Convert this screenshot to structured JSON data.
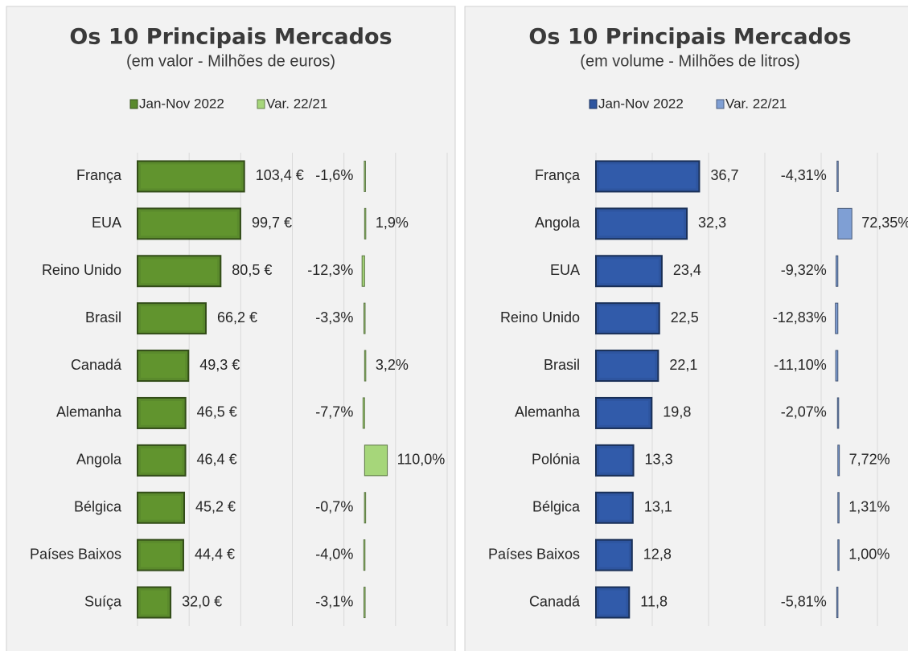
{
  "chart_data": [
    {
      "type": "bar",
      "orientation": "horizontal",
      "title": "Os 10 Principais Mercados",
      "subtitle": "(em valor - Milhões de euros)",
      "categories": [
        "França",
        "EUA",
        "Reino Unido",
        "Brasil",
        "Canadá",
        "Alemanha",
        "Angola",
        "Bélgica",
        "Países Baixos",
        "Suíça"
      ],
      "series": [
        {
          "name": "Jan-Nov 2022",
          "color": "#5a8a2c",
          "values": [
            103.4,
            99.7,
            80.5,
            66.2,
            49.3,
            46.5,
            46.4,
            45.2,
            44.4,
            32.0
          ],
          "value_labels": [
            "103,4 €",
            "99,7 €",
            "80,5 €",
            "66,2 €",
            "49,3 €",
            "46,5 €",
            "46,4 €",
            "45,2 €",
            "44,4 €",
            "32,0 €"
          ]
        },
        {
          "name": "Var. 22/21",
          "color": "#a6d67a",
          "axis": "x2",
          "negative_label_color": "#ff0000",
          "values": [
            -1.6,
            1.9,
            -12.3,
            -3.3,
            3.2,
            -7.7,
            110.0,
            -0.7,
            -4.0,
            -3.1
          ],
          "value_labels": [
            "-1,6%",
            "1,9%",
            "-12,3%",
            "-3,3%",
            "3,2%",
            "-7,7%",
            "110,0%",
            "-0,7%",
            "-4,0%",
            "-3,1%"
          ]
        }
      ],
      "xlim": [
        0,
        300
      ],
      "xticks": [
        0,
        50,
        100,
        150,
        200,
        250,
        300
      ],
      "x2lim": [
        -1100,
        400
      ],
      "grid": true,
      "legend": "top"
    },
    {
      "type": "bar",
      "orientation": "horizontal",
      "title": "Os 10 Principais Mercados",
      "subtitle": "(em volume - Milhões de litros)",
      "categories": [
        "França",
        "Angola",
        "EUA",
        "Reino Unido",
        "Brasil",
        "Alemanha",
        "Polónia",
        "Bélgica",
        "Países Baixos",
        "Canadá"
      ],
      "series": [
        {
          "name": "Jan-Nov 2022",
          "color": "#2e559f",
          "values": [
            36.7,
            32.3,
            23.4,
            22.5,
            22.1,
            19.8,
            13.3,
            13.1,
            12.8,
            11.8
          ],
          "value_labels": [
            "36,7",
            "32,3",
            "23,4",
            "22,5",
            "22,1",
            "19,8",
            "13,3",
            "13,1",
            "12,8",
            "11,8"
          ]
        },
        {
          "name": "Var. 22/21",
          "color": "#7f9fd4",
          "axis": "x2",
          "negative_label_color": "#ff0000",
          "values": [
            -4.31,
            72.35,
            -9.32,
            -12.83,
            -11.1,
            -2.07,
            7.72,
            1.31,
            1.0,
            -5.81
          ],
          "value_labels": [
            "-4,31%",
            "72,35%",
            "-9,32%",
            "-12,83%",
            "-11,10%",
            "-2,07%",
            "7,72%",
            "1,31%",
            "1,00%",
            "-5,81%"
          ]
        }
      ],
      "xlim": [
        0,
        110
      ],
      "xticks": [
        0,
        20,
        40,
        60,
        80,
        100
      ],
      "x2lim": [
        -1250,
        350
      ],
      "grid": true,
      "legend": "top"
    }
  ]
}
